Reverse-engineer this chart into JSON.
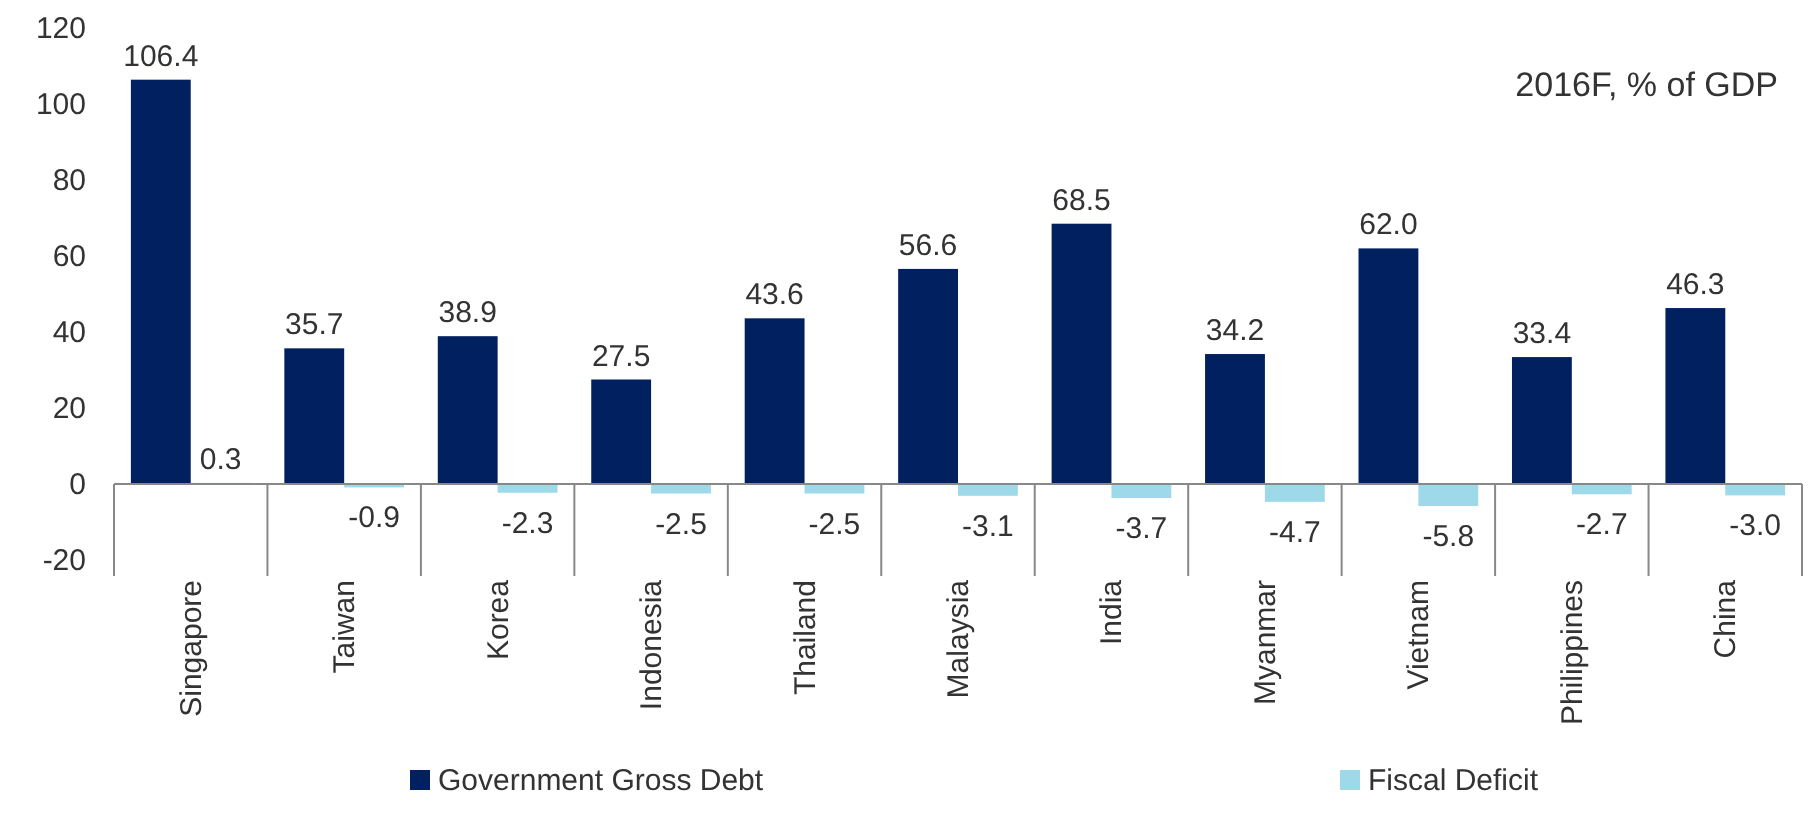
{
  "chart_data": {
    "type": "bar",
    "categories": [
      "Singapore",
      "Taiwan",
      "Korea",
      "Indonesia",
      "Thailand",
      "Malaysia",
      "India",
      "Myanmar",
      "Vietnam",
      "Philippines",
      "China"
    ],
    "series": [
      {
        "name": "Government Gross Debt",
        "color": "#002060",
        "values": [
          106.4,
          35.7,
          38.9,
          27.5,
          43.6,
          56.6,
          68.5,
          34.2,
          62.0,
          33.4,
          46.3
        ],
        "value_labels": [
          "106.4",
          "35.7",
          "38.9",
          "27.5",
          "43.6",
          "56.6",
          "68.5",
          "34.2",
          "62.0",
          "33.4",
          "46.3"
        ]
      },
      {
        "name": "Fiscal Deficit",
        "color": "#9dd9e8",
        "values": [
          0.3,
          -0.9,
          -2.3,
          -2.5,
          -2.5,
          -3.1,
          -3.7,
          -4.7,
          -5.8,
          -2.7,
          -3.0
        ],
        "value_labels": [
          "0.3",
          "-0.9",
          "-2.3",
          "-2.5",
          "-2.5",
          "-3.1",
          "-3.7",
          "-4.7",
          "-5.8",
          "-2.7",
          "-3.0"
        ]
      }
    ],
    "ylim": [
      -20,
      120
    ],
    "yticks": [
      -20,
      0,
      20,
      40,
      60,
      80,
      100,
      120
    ],
    "legend": "bottom",
    "annotations": [
      "2016F, % of GDP"
    ]
  }
}
